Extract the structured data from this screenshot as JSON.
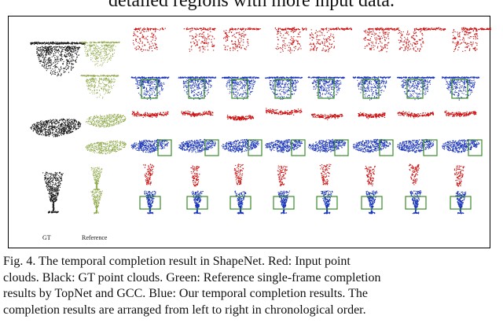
{
  "top_text": "detailed regions with more input data.",
  "figure": {
    "labels": {
      "gt": "GT",
      "reference": "Reference"
    },
    "colors": {
      "input": "#cc1111",
      "gt": "#1a1a1a",
      "reference": "#8fa84a",
      "ours": "#1a35b8",
      "highlight_box": "#3a8a2a"
    }
  },
  "caption": {
    "lines": [
      "Fig. 4.   The temporal completion result in ShapeNet. Red: Input point",
      "clouds. Black: GT point clouds. Green: Reference single-frame completion",
      "results by TopNet and GCC. Blue: Our temporal completion results. The",
      "completion results are arranged from left to right in chronological order."
    ]
  }
}
